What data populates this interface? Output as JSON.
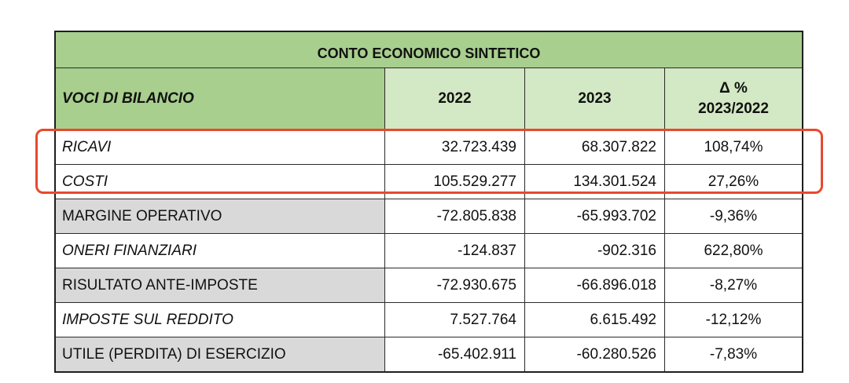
{
  "table": {
    "title": "CONTO ECONOMICO SINTETICO",
    "headers": {
      "label": "VOCI DI BILANCIO",
      "year1": "2022",
      "year2": "2023",
      "delta_line1": "Δ %",
      "delta_line2": "2023/2022"
    },
    "rows": [
      {
        "label": "RICAVI",
        "v2022": "32.723.439",
        "v2023": "68.307.822",
        "delta": "108,74%"
      },
      {
        "label": "COSTI",
        "v2022": "105.529.277",
        "v2023": "134.301.524",
        "delta": "27,26%"
      },
      {
        "label": "MARGINE OPERATIVO",
        "v2022": "-72.805.838",
        "v2023": "-65.993.702",
        "delta": "-9,36%"
      },
      {
        "label": "ONERI FINANZIARI",
        "v2022": "-124.837",
        "v2023": "-902.316",
        "delta": "622,80%"
      },
      {
        "label": "RISULTATO ANTE-IMPOSTE",
        "v2022": "-72.930.675",
        "v2023": "-66.896.018",
        "delta": "-8,27%"
      },
      {
        "label": "IMPOSTE SUL REDDITO",
        "v2022": "7.527.764",
        "v2023": "6.615.492",
        "delta": "-12,12%"
      },
      {
        "label": "UTILE (PERDITA) DI ESERCIZIO",
        "v2022": "-65.402.911",
        "v2023": "-60.280.526",
        "delta": "-7,83%"
      }
    ]
  },
  "colors": {
    "header_green": "#a8cf8e",
    "header_light_green": "#d3e8c4",
    "grey_row": "#d9d9d9",
    "highlight_red": "#e8492d"
  }
}
